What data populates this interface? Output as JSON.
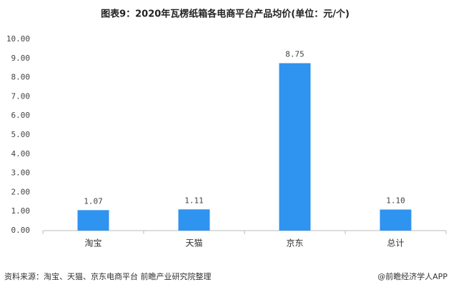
{
  "chart_data": {
    "type": "bar",
    "title": "图表9：2020年瓦楞纸箱各电商平台产品均价(单位：元/个)",
    "categories": [
      "淘宝",
      "天猫",
      "京东",
      "总计"
    ],
    "values": [
      1.07,
      1.11,
      8.75,
      1.1
    ],
    "value_labels": [
      "1.07",
      "1.11",
      "8.75",
      "1.10"
    ],
    "color": "#2f93f0",
    "ylim": [
      0,
      10
    ],
    "yticks": [
      {
        "value": 0,
        "label": "0.00"
      },
      {
        "value": 1,
        "label": "1.00"
      },
      {
        "value": 2,
        "label": "2.00"
      },
      {
        "value": 3,
        "label": "3.00"
      },
      {
        "value": 4,
        "label": "4.00"
      },
      {
        "value": 5,
        "label": "5.00"
      },
      {
        "value": 6,
        "label": "6.00"
      },
      {
        "value": 7,
        "label": "7.00"
      },
      {
        "value": 8,
        "label": "8.00"
      },
      {
        "value": 9,
        "label": "9.00"
      },
      {
        "value": 10,
        "label": "10.00"
      }
    ],
    "grid": false,
    "source": "资料来源：淘宝、天猫、京东电商平台 前瞻产业研究院整理",
    "credit": "@前瞻经济学人APP"
  }
}
